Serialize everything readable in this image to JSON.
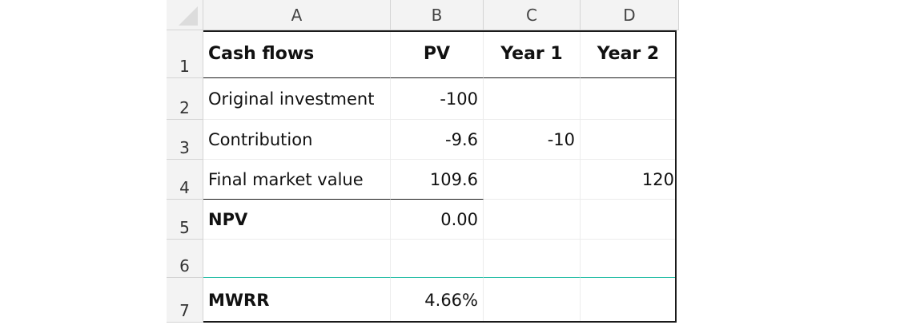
{
  "columns": [
    "A",
    "B",
    "C",
    "D"
  ],
  "rows": [
    "1",
    "2",
    "3",
    "4",
    "5",
    "6",
    "7"
  ],
  "cells": {
    "A1": "Cash flows",
    "B1": "PV",
    "C1": "Year 1",
    "D1": "Year 2",
    "A2": "Original investment",
    "B2": "-100",
    "C2": "",
    "D2": "",
    "A3": "Contribution",
    "B3": "-9.6",
    "C3": "-10",
    "D3": "",
    "A4": "Final market value",
    "B4": "109.6",
    "C4": "",
    "D4": "120",
    "A5": "NPV",
    "B5": "0.00",
    "C5": "",
    "D5": "",
    "A6": "",
    "B6": "",
    "C6": "",
    "D6": "",
    "A7": "MWRR",
    "B7": "4.66%",
    "C7": "",
    "D7": ""
  }
}
